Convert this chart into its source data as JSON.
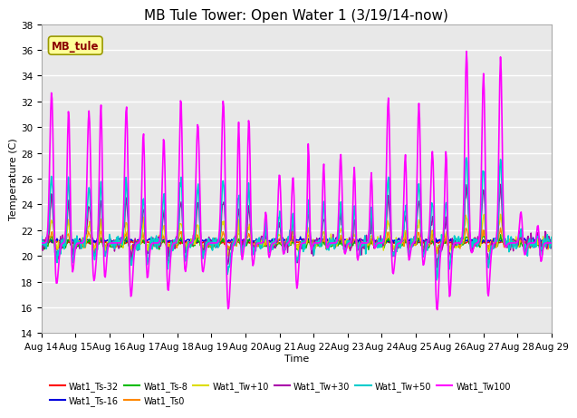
{
  "title": "MB Tule Tower: Open Water 1 (3/19/14-now)",
  "xlabel": "Time",
  "ylabel": "Temperature (C)",
  "ylim": [
    14,
    38
  ],
  "xtick_labels": [
    "Aug 14",
    "Aug 15",
    "Aug 16",
    "Aug 17",
    "Aug 18",
    "Aug 19",
    "Aug 20",
    "Aug 21",
    "Aug 22",
    "Aug 23",
    "Aug 24",
    "Aug 25",
    "Aug 26",
    "Aug 27",
    "Aug 28",
    "Aug 29"
  ],
  "ytick_labels": [
    14,
    16,
    18,
    20,
    22,
    24,
    26,
    28,
    30,
    32,
    34,
    36,
    38
  ],
  "series": {
    "Wat1_Ts-32": {
      "color": "#ff0000",
      "linewidth": 1.0,
      "zorder": 3
    },
    "Wat1_Ts-16": {
      "color": "#0000dd",
      "linewidth": 1.0,
      "zorder": 3
    },
    "Wat1_Ts-8": {
      "color": "#00bb00",
      "linewidth": 1.0,
      "zorder": 3
    },
    "Wat1_Ts0": {
      "color": "#ff8800",
      "linewidth": 1.0,
      "zorder": 3
    },
    "Wat1_Tw+10": {
      "color": "#dddd00",
      "linewidth": 1.0,
      "zorder": 3
    },
    "Wat1_Tw+30": {
      "color": "#aa00aa",
      "linewidth": 1.0,
      "zorder": 3
    },
    "Wat1_Tw+50": {
      "color": "#00cccc",
      "linewidth": 1.2,
      "zorder": 4
    },
    "Wat1_Tw100": {
      "color": "#ff00ff",
      "linewidth": 1.2,
      "zorder": 5
    }
  },
  "annotation_text": "MB_tule",
  "background_color": "#ffffff",
  "plot_bg_color": "#e8e8e8",
  "grid_color": "#ffffff",
  "title_fontsize": 11,
  "axis_fontsize": 8,
  "tick_fontsize": 7.5
}
